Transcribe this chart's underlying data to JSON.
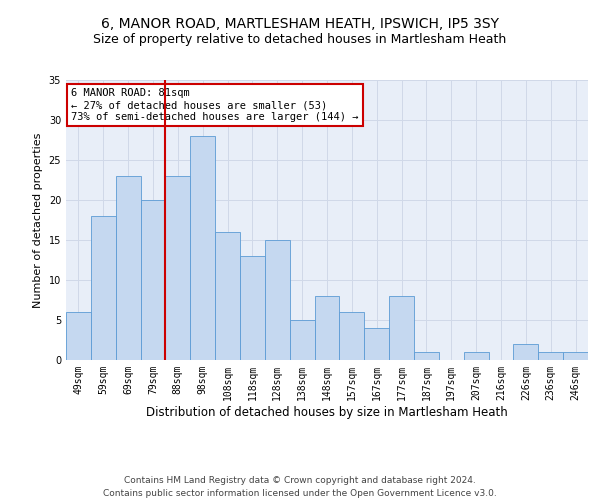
{
  "title": "6, MANOR ROAD, MARTLESHAM HEATH, IPSWICH, IP5 3SY",
  "subtitle": "Size of property relative to detached houses in Martlesham Heath",
  "xlabel": "Distribution of detached houses by size in Martlesham Heath",
  "ylabel": "Number of detached properties",
  "categories": [
    "49sqm",
    "59sqm",
    "69sqm",
    "79sqm",
    "88sqm",
    "98sqm",
    "108sqm",
    "118sqm",
    "128sqm",
    "138sqm",
    "148sqm",
    "157sqm",
    "167sqm",
    "177sqm",
    "187sqm",
    "197sqm",
    "207sqm",
    "216sqm",
    "226sqm",
    "236sqm",
    "246sqm"
  ],
  "values": [
    6,
    18,
    23,
    20,
    23,
    28,
    16,
    13,
    15,
    5,
    8,
    6,
    4,
    8,
    1,
    0,
    1,
    0,
    2,
    1,
    1
  ],
  "bar_color": "#c5d8f0",
  "bar_edge_color": "#5b9bd5",
  "vline_x": 3.5,
  "vline_color": "#cc0000",
  "annotation_text": "6 MANOR ROAD: 81sqm\n← 27% of detached houses are smaller (53)\n73% of semi-detached houses are larger (144) →",
  "annotation_box_color": "#ffffff",
  "annotation_box_edge": "#cc0000",
  "ylim": [
    0,
    35
  ],
  "yticks": [
    0,
    5,
    10,
    15,
    20,
    25,
    30,
    35
  ],
  "grid_color": "#d0d8e8",
  "bg_color": "#e8eef8",
  "footer1": "Contains HM Land Registry data © Crown copyright and database right 2024.",
  "footer2": "Contains public sector information licensed under the Open Government Licence v3.0.",
  "title_fontsize": 10,
  "subtitle_fontsize": 9,
  "xlabel_fontsize": 8.5,
  "ylabel_fontsize": 8,
  "tick_fontsize": 7,
  "footer_fontsize": 6.5,
  "annot_fontsize": 7.5
}
